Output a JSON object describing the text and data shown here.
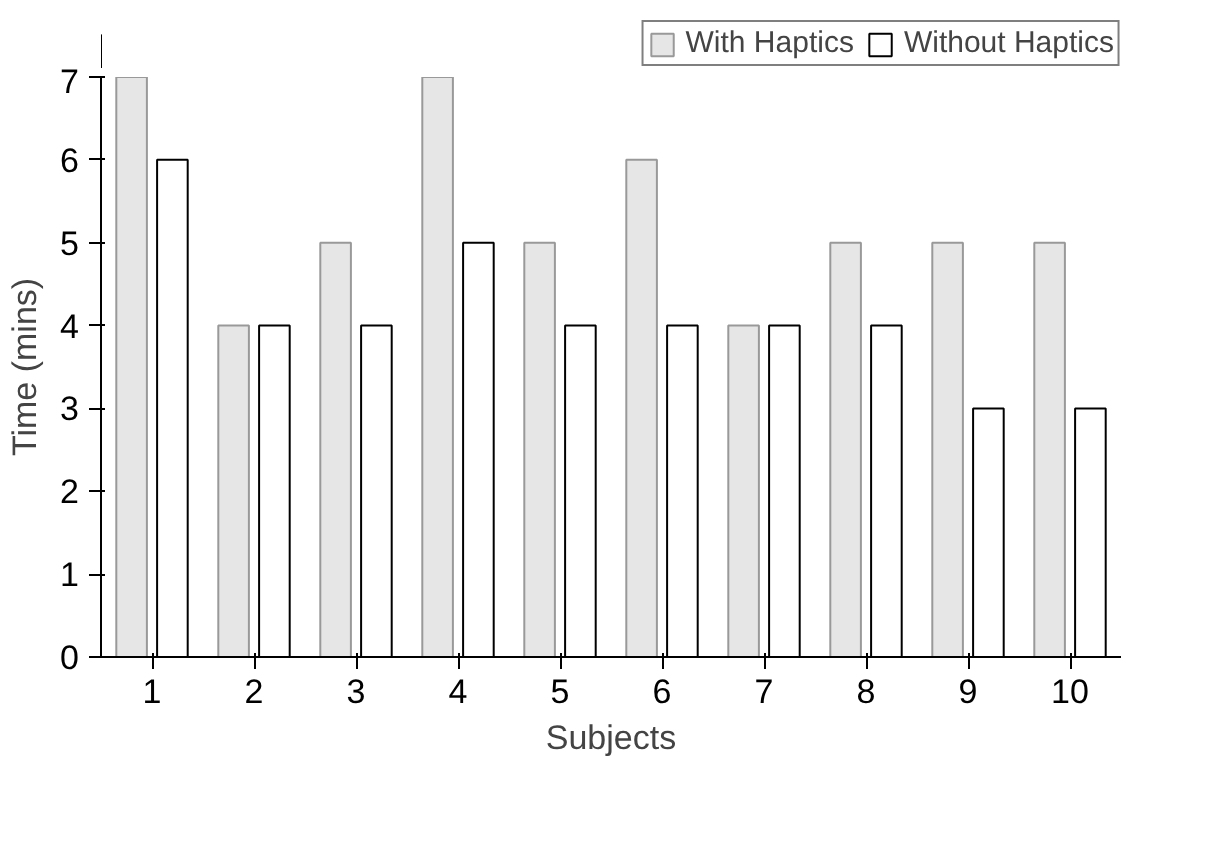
{
  "chart_data": {
    "type": "bar",
    "xlabel": "Subjects",
    "ylabel": "Time (mins)",
    "categories": [
      "1",
      "2",
      "3",
      "4",
      "5",
      "6",
      "7",
      "8",
      "9",
      "10"
    ],
    "series": [
      {
        "name": "With Haptics",
        "color": "#e6e6e6",
        "values": [
          7,
          4,
          5,
          7,
          5,
          6,
          4,
          5,
          5,
          5
        ]
      },
      {
        "name": "Without Haptics",
        "color": "#ffffff",
        "values": [
          6,
          4,
          4,
          5,
          4,
          4,
          4,
          4,
          3,
          3
        ]
      }
    ],
    "ylim": [
      0,
      7
    ],
    "yticks": [
      0,
      1,
      2,
      3,
      4,
      5,
      6,
      7
    ],
    "grid": false,
    "legend": "top right"
  }
}
